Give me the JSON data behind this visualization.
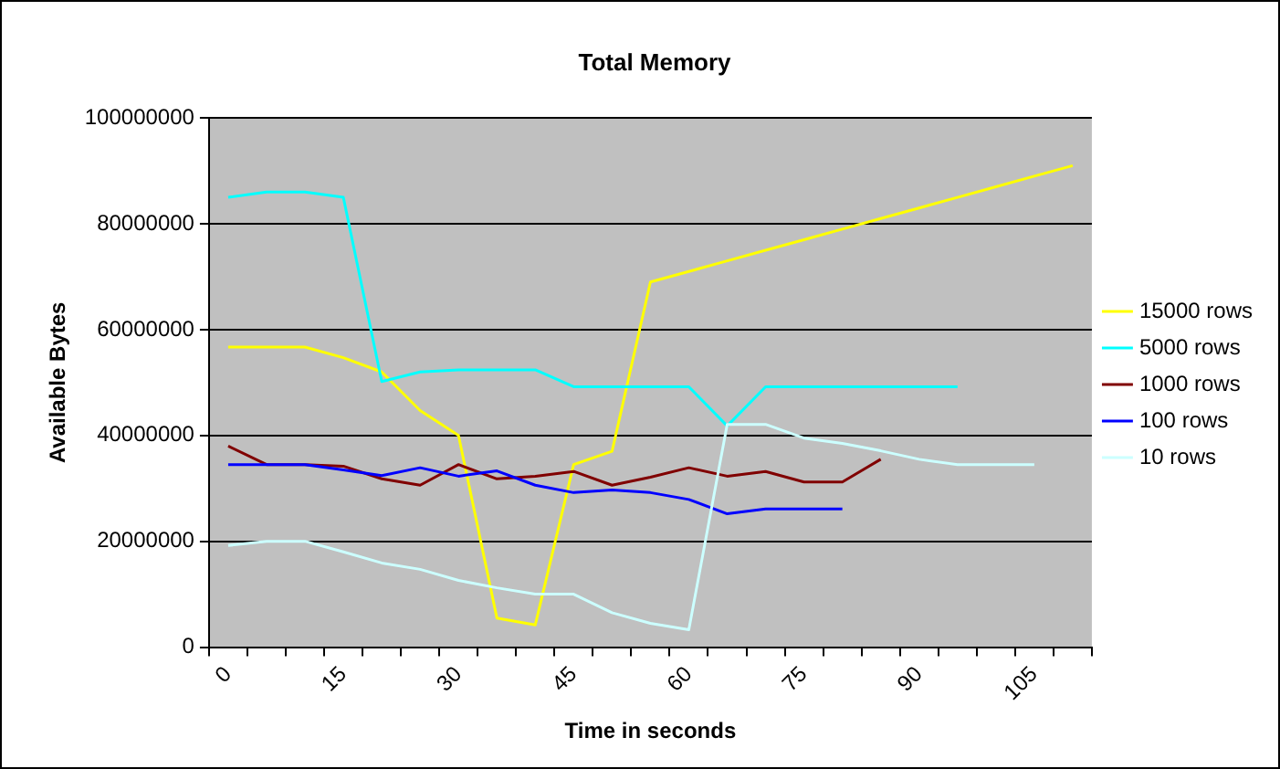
{
  "chart_data": {
    "type": "line",
    "title": "Total Memory",
    "xlabel": "Time in seconds",
    "ylabel": "Available Bytes",
    "categories": [
      "0",
      null,
      null,
      "15",
      null,
      null,
      "30",
      null,
      null,
      "45",
      null,
      null,
      "60",
      null,
      null,
      "75",
      null,
      null,
      "90",
      null,
      null,
      "105",
      null
    ],
    "series": [
      {
        "name": "15000 rows",
        "color": "#ffff00",
        "values": [
          56700000,
          56700000,
          56700000,
          54700000,
          52000000,
          44700000,
          40000000,
          5500000,
          4200000,
          34500000,
          37000000,
          69000000,
          71000000,
          73000000,
          75000000,
          77000000,
          79000000,
          81000000,
          83000000,
          85000000,
          87000000,
          89000000,
          91000000
        ]
      },
      {
        "name": "5000 rows",
        "color": "#00ffff",
        "values": [
          85000000,
          86000000,
          86000000,
          85000000,
          50200000,
          52000000,
          52400000,
          52400000,
          52400000,
          49200000,
          49200000,
          49200000,
          49200000,
          41800000,
          49200000,
          49200000,
          49200000,
          49200000,
          49200000,
          49200000,
          null,
          null,
          null
        ]
      },
      {
        "name": "1000 rows",
        "color": "#800000",
        "values": [
          38000000,
          34500000,
          34500000,
          34200000,
          31800000,
          30600000,
          34500000,
          31800000,
          32300000,
          33200000,
          30600000,
          32100000,
          33900000,
          32300000,
          33200000,
          31200000,
          31200000,
          35500000,
          null,
          null,
          null,
          null,
          null
        ]
      },
      {
        "name": "100 rows",
        "color": "#0000ff",
        "values": [
          34500000,
          34500000,
          34500000,
          33500000,
          32400000,
          33900000,
          32300000,
          33300000,
          30600000,
          29200000,
          29700000,
          29200000,
          27900000,
          25200000,
          26100000,
          26100000,
          26100000,
          null,
          null,
          null,
          null,
          null,
          null
        ]
      },
      {
        "name": "10 rows",
        "color": "#ccffff",
        "values": [
          19200000,
          20000000,
          20000000,
          18000000,
          15900000,
          14700000,
          12600000,
          11200000,
          10000000,
          10000000,
          6500000,
          4500000,
          3300000,
          42100000,
          42100000,
          39500000,
          38500000,
          37100000,
          35500000,
          34500000,
          34500000,
          34500000,
          null
        ]
      }
    ],
    "ylim": [
      0,
      100000000
    ],
    "yticks": [
      0,
      20000000,
      40000000,
      60000000,
      80000000,
      100000000
    ],
    "grid": "y",
    "legend": "right",
    "marker": "none",
    "line_style": "solid"
  }
}
